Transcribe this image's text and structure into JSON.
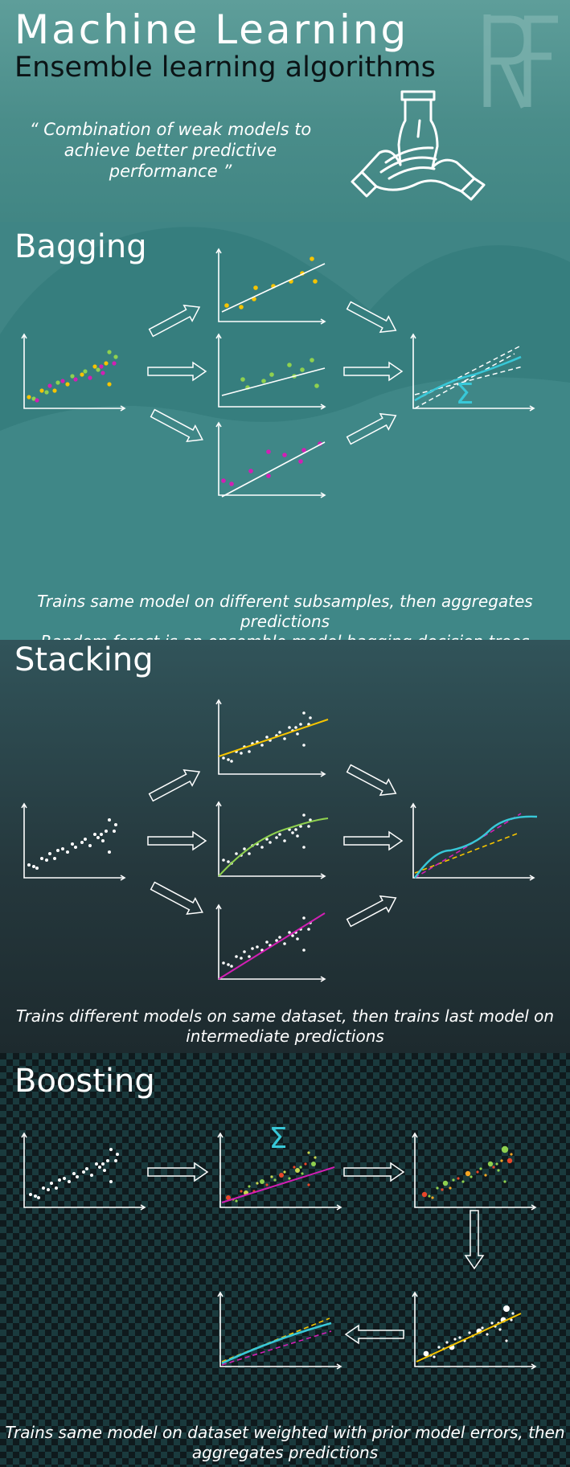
{
  "header": {
    "title": "Machine Learning",
    "subtitle": "Ensemble learning algorithms",
    "quote_line1": "“ Combination of weak models to",
    "quote_line2": "achieve better predictive performance ”",
    "logo_icon": "rf-logo-icon",
    "illustration_icon": "joined-hands-icon"
  },
  "bagging": {
    "title": "Bagging",
    "caption_line1": "Trains same model on different subsamples, then aggregates predictions",
    "caption_line2": "Random forest is an ensemble model bagging decision trees",
    "sum_symbol": "Σ"
  },
  "stacking": {
    "title": "Stacking",
    "caption_line1": "Trains different models on same dataset, then trains last model on",
    "caption_line2": "intermediate predictions"
  },
  "boosting": {
    "title": "Boosting",
    "caption_line1": "Trains same model on dataset weighted with prior model errors, then",
    "caption_line2": "aggregates predictions",
    "sum_symbol": "Σ"
  },
  "colors": {
    "yellow": "#f5c400",
    "green": "#8fd14f",
    "magenta": "#d21fb4",
    "cyan": "#38c8d8",
    "orange_red": "#e8472a"
  }
}
